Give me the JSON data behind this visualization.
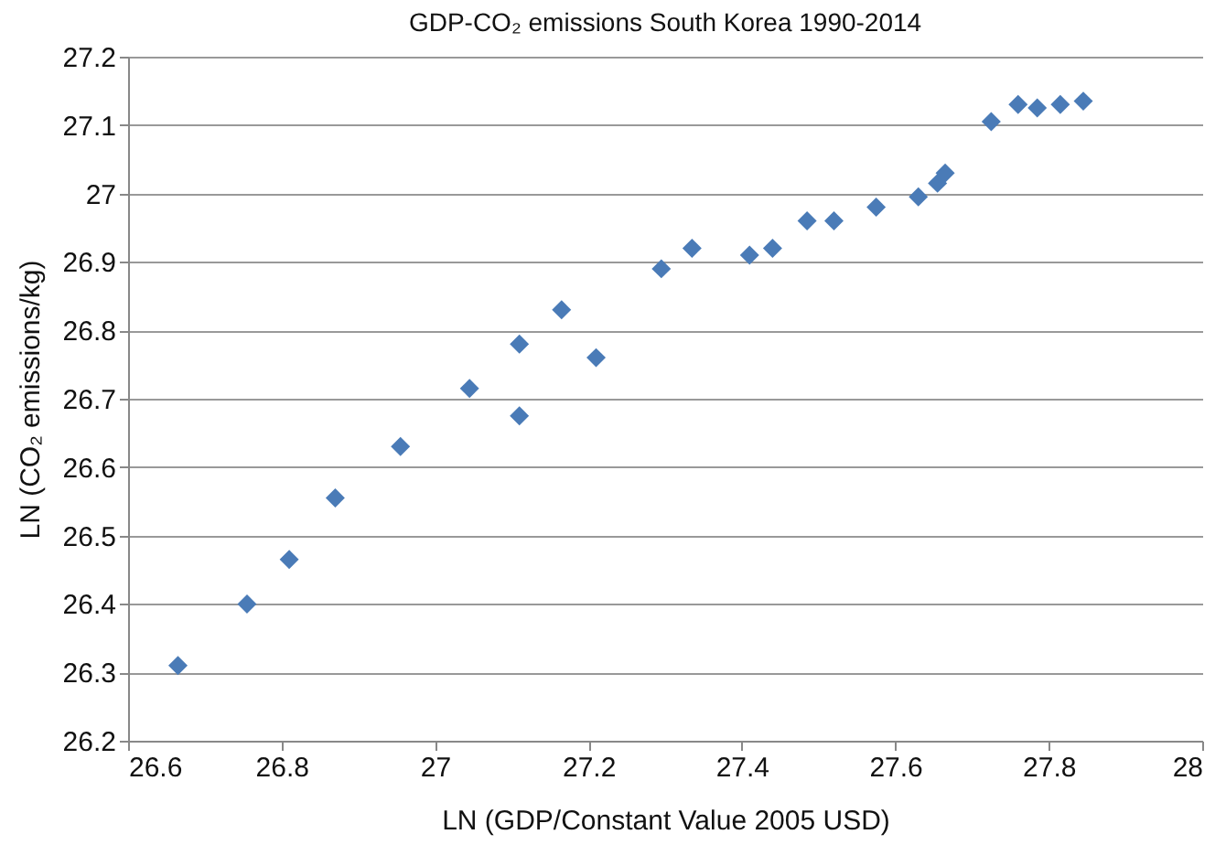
{
  "chart_data": {
    "type": "scatter",
    "title": "GDP-CO₂ emissions South Korea 1990-2014",
    "xlabel": "LN (GDP/Constant Value 2005 USD)",
    "ylabel": "LN (CO₂ emissions/kg)",
    "x": [
      26.665,
      26.755,
      26.81,
      26.87,
      26.955,
      27.045,
      27.11,
      27.11,
      27.165,
      27.21,
      27.295,
      27.335,
      27.41,
      27.44,
      27.485,
      27.52,
      27.575,
      27.63,
      27.655,
      27.665,
      27.725,
      27.76,
      27.785,
      27.815,
      27.845
    ],
    "series": [
      {
        "color": "#4a7bb7",
        "values": [
          26.31,
          26.4,
          26.465,
          26.555,
          26.63,
          26.715,
          26.675,
          26.78,
          26.83,
          26.76,
          26.89,
          26.92,
          26.91,
          26.92,
          26.96,
          26.96,
          26.98,
          26.995,
          27.015,
          27.03,
          27.105,
          27.13,
          27.125,
          27.13,
          27.135
        ]
      }
    ],
    "xlim": [
      26.6,
      28
    ],
    "xticks": [
      26.6,
      26.8,
      27,
      27.2,
      27.4,
      27.6,
      27.8,
      28
    ],
    "ylim": [
      26.2,
      27.2
    ],
    "yticks": [
      26.2,
      26.3,
      26.4,
      26.5,
      26.6,
      26.7,
      26.8,
      26.9,
      27,
      27.1,
      27.2
    ],
    "grid": "y",
    "marker": "diamond"
  }
}
